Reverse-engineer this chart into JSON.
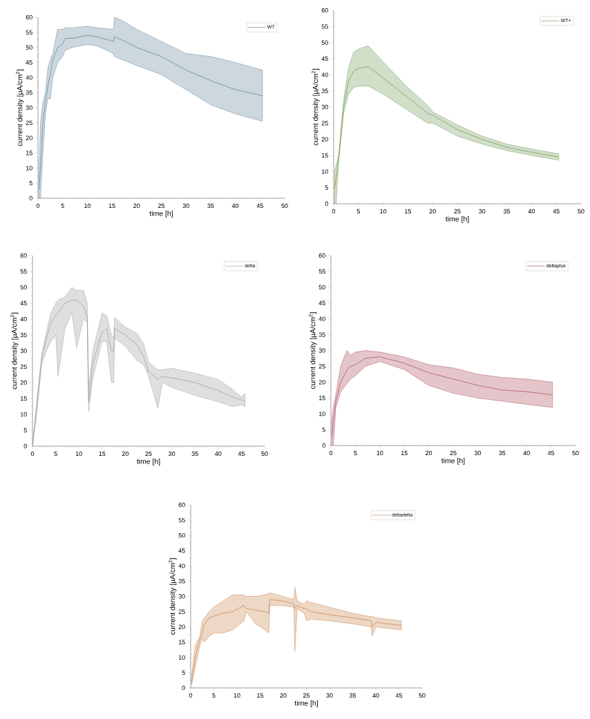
{
  "chart_data": [
    {
      "type": "line",
      "xlabel": "time [h]",
      "ylabel": "current density [µA/cm$^{2}$]",
      "xlim": [
        0,
        50
      ],
      "ylim": [
        0,
        60
      ],
      "xticks": [
        0,
        5,
        10,
        15,
        20,
        25,
        30,
        35,
        40,
        45,
        50
      ],
      "yticks": [
        0,
        5,
        10,
        15,
        20,
        25,
        30,
        35,
        40,
        45,
        50,
        55,
        60
      ],
      "legend": "top right",
      "series": [
        {
          "name": "WT",
          "color": "#4a6f8a",
          "x": [
            0.2,
            0.5,
            1,
            1.5,
            2,
            2.5,
            3,
            4,
            5,
            5.5,
            7,
            10,
            12,
            15.3,
            15.5,
            17,
            20,
            25,
            30,
            35,
            40,
            45.5
          ],
          "values": [
            3,
            10,
            25,
            32,
            37,
            41,
            46,
            50,
            51,
            53,
            53,
            54,
            53.5,
            52,
            53.5,
            52.5,
            50,
            47,
            42.5,
            39,
            36,
            34
          ],
          "lower": [
            0,
            0,
            15,
            28,
            33,
            33,
            40,
            45,
            47,
            49,
            50,
            51,
            50.5,
            48,
            47,
            46,
            44,
            41,
            36,
            31,
            28,
            25.5
          ],
          "upper": [
            8,
            25,
            32,
            35,
            43,
            46,
            48,
            56,
            56,
            56.5,
            56.5,
            57,
            56.5,
            56,
            60,
            59,
            56,
            52,
            48,
            47,
            45,
            42.5
          ]
        }
      ]
    },
    {
      "type": "line",
      "xlabel": "time [h]",
      "ylabel": "current density [µA/cm$^{2}$]",
      "xlim": [
        0,
        50
      ],
      "ylim": [
        0,
        60
      ],
      "xticks": [
        0,
        5,
        10,
        15,
        20,
        25,
        30,
        35,
        40,
        45,
        50
      ],
      "yticks": [
        0,
        5,
        10,
        15,
        20,
        25,
        30,
        35,
        40,
        45,
        50,
        55,
        60
      ],
      "legend": "top right",
      "series": [
        {
          "name": "WT+",
          "color": "#5a8a3a",
          "x": [
            0.2,
            0.5,
            1,
            2,
            3,
            4,
            5,
            7,
            10,
            15,
            19,
            20,
            25,
            30,
            35,
            40,
            45.5
          ],
          "values": [
            5,
            8,
            14,
            30,
            38,
            41,
            42,
            42.5,
            39,
            33,
            28,
            27.5,
            23,
            20,
            17.5,
            16,
            14.5
          ],
          "lower": [
            0,
            0,
            13,
            28,
            34,
            36,
            36.5,
            36.5,
            34,
            29,
            25,
            25,
            21,
            18.5,
            16.5,
            15,
            13.5
          ],
          "upper": [
            10,
            12,
            15,
            32,
            42,
            47,
            48,
            49,
            44,
            36,
            30.5,
            28.5,
            24.5,
            21,
            18.5,
            17,
            15.5
          ]
        }
      ]
    },
    {
      "type": "line",
      "xlabel": "time [h]",
      "ylabel": "current density [µA/cm$^{2}$]",
      "xlim": [
        0,
        50
      ],
      "ylim": [
        0,
        60
      ],
      "xticks": [
        0,
        5,
        10,
        15,
        20,
        25,
        30,
        35,
        40,
        45,
        50
      ],
      "yticks": [
        0,
        5,
        10,
        15,
        20,
        25,
        30,
        35,
        40,
        45,
        50,
        55,
        60
      ],
      "legend": "top right",
      "series": [
        {
          "name": "delta",
          "color": "#8c8c8c",
          "x": [
            0,
            1,
            2,
            3,
            4,
            5,
            5.5,
            7,
            8.5,
            9.5,
            11,
            11.8,
            12.1,
            13,
            15,
            16,
            17,
            17.5,
            17.7,
            20,
            22.5,
            24,
            25,
            27,
            28,
            30,
            35,
            40,
            43,
            45,
            45.8
          ],
          "values": [
            0,
            14,
            27.5,
            34,
            39,
            41,
            42,
            45,
            46,
            46,
            44,
            40.5,
            14,
            26,
            36,
            37,
            30,
            30,
            37,
            35,
            32,
            28,
            23.5,
            21,
            22,
            21.5,
            20,
            17.5,
            15.5,
            14.5,
            14
          ],
          "lower": [
            0,
            11,
            26,
            30,
            33,
            35,
            22,
            37,
            42,
            31,
            40,
            39,
            11,
            21.5,
            33,
            33,
            20,
            20,
            34,
            31.5,
            27,
            25.5,
            22,
            12,
            20,
            18.5,
            16,
            14,
            12.5,
            13,
            12.5
          ],
          "upper": [
            0,
            15,
            29,
            36,
            42,
            45,
            46,
            47,
            50,
            49,
            49,
            45,
            18,
            30,
            42,
            41,
            35,
            34,
            40.5,
            37.5,
            35.5,
            32,
            26.5,
            24,
            24,
            24.5,
            23,
            21,
            18,
            15.5,
            16.5
          ]
        }
      ]
    },
    {
      "type": "line",
      "xlabel": "time [h]",
      "ylabel": "current density [µA/cm$^{2}$]",
      "xlim": [
        0,
        50
      ],
      "ylim": [
        0,
        60
      ],
      "xticks": [
        0,
        5,
        10,
        15,
        20,
        25,
        30,
        35,
        40,
        45,
        50
      ],
      "yticks": [
        0,
        5,
        10,
        15,
        20,
        25,
        30,
        35,
        40,
        45,
        50,
        55,
        60
      ],
      "legend": "top right",
      "series": [
        {
          "name": "deltaplus",
          "color": "#a03040",
          "x": [
            0.2,
            0.5,
            1,
            2,
            3,
            3.3,
            4,
            5,
            7,
            10,
            15,
            20,
            25,
            30,
            35,
            40,
            45.3
          ],
          "values": [
            3,
            8,
            14,
            20,
            23,
            24,
            25,
            25.5,
            27.5,
            28,
            26,
            23,
            21,
            19,
            17.5,
            17,
            16
          ],
          "lower": [
            0,
            0,
            12,
            17,
            19,
            19.5,
            21,
            22,
            25,
            26.5,
            24,
            19,
            16.5,
            15,
            14,
            13,
            12
          ],
          "upper": [
            8,
            12,
            16,
            25,
            29,
            30,
            28.5,
            29.5,
            30,
            29.5,
            28,
            25.5,
            24.5,
            22.5,
            21.5,
            21,
            20
          ]
        }
      ]
    },
    {
      "type": "line",
      "xlabel": "time [h]",
      "ylabel": "current density [µA/cm$^{2}$]",
      "xlim": [
        0,
        50
      ],
      "ylim": [
        0,
        60
      ],
      "xticks": [
        0,
        5,
        10,
        15,
        20,
        25,
        30,
        35,
        40,
        45,
        50
      ],
      "yticks": [
        0,
        5,
        10,
        15,
        20,
        25,
        30,
        35,
        40,
        45,
        50,
        55,
        60
      ],
      "legend": "top right",
      "series": [
        {
          "name": "deltadelta",
          "color": "#c07030",
          "x": [
            0.2,
            1,
            2,
            2.5,
            3,
            4,
            5,
            7,
            9,
            11.5,
            12,
            14,
            16,
            16.9,
            17.1,
            20,
            22.3,
            22.5,
            23,
            24.5,
            25,
            26,
            30,
            35,
            39,
            39.2,
            40,
            45.5
          ],
          "values": [
            2,
            10,
            16,
            18,
            21,
            23,
            23.5,
            24.5,
            25,
            27,
            26,
            25.5,
            25,
            24.5,
            29,
            28.5,
            27.5,
            26,
            27,
            26,
            26,
            25,
            24,
            23,
            22,
            20,
            21.5,
            20.5
          ],
          "lower": [
            1,
            7,
            14,
            16,
            15,
            17,
            18,
            18,
            19,
            22,
            25,
            21,
            19,
            18,
            27,
            27,
            26.5,
            12,
            26,
            24.5,
            22,
            22.5,
            22,
            21,
            20,
            17,
            20,
            19
          ],
          "upper": [
            4,
            14,
            17,
            22,
            23,
            25,
            26.5,
            28.5,
            30.5,
            30.5,
            30,
            30,
            30.5,
            31,
            31.2,
            30,
            29,
            33,
            28.5,
            27.5,
            28.5,
            28,
            26.5,
            24.5,
            23.3,
            23.5,
            23,
            22
          ]
        }
      ]
    }
  ]
}
